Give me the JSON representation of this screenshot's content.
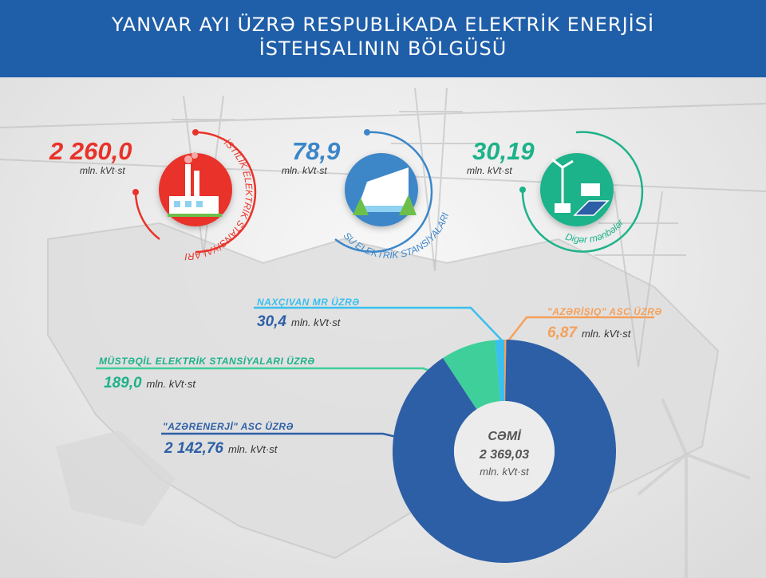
{
  "header": {
    "line1": "YANVAR AYI ÜZRƏ RESPUBLİKADA ELEKTRİK ENERJİSİ",
    "line2": "İSTEHSALININ  BÖLGÜSÜ"
  },
  "sources": [
    {
      "value": "2 260,0",
      "unit": "mln. kVt·st",
      "label": "İSTİLİK ELEKTRİK STANSİYALARI",
      "color": "#e8332a",
      "icon": "thermal-power-plant-icon"
    },
    {
      "value": "78,9",
      "unit": "mln. kVt·st",
      "label": "SU ELEKTRİK STANSİYALARI",
      "color": "#3c86c8",
      "icon": "hydro-power-dam-icon"
    },
    {
      "value": "30,19",
      "unit": "mln. kVt·st",
      "label": "Digər mənbələr",
      "color": "#1db28a",
      "icon": "renewable-energy-icon"
    }
  ],
  "chart_data": {
    "type": "pie",
    "donut": true,
    "total_label": "CƏMİ",
    "total_value": "2 369,03",
    "total_unit": "mln. kVt·st",
    "slices": [
      {
        "label": "\"AZƏRENERJİ\" ASC ÜZRƏ",
        "value": 2142.76,
        "display": "2 142,76",
        "unit": "mln. kVt·st",
        "color": "#2d5fa6"
      },
      {
        "label": "MÜSTƏQİL ELEKTRİK STANSİYALARI ÜZRƏ",
        "value": 189.0,
        "display": "189,0",
        "unit": "mln. kVt·st",
        "color": "#3fcf9a"
      },
      {
        "label": "NAXÇIVAN MR ÜZRƏ",
        "value": 30.4,
        "display": "30,4",
        "unit": "mln. kVt·st",
        "color": "#39c0ee"
      },
      {
        "label": "\"AZƏRİŞIQ\" ASC ÜZRƏ",
        "value": 6.87,
        "display": "6,87",
        "unit": "mln. kVt·st",
        "color": "#f5a05a"
      }
    ]
  }
}
